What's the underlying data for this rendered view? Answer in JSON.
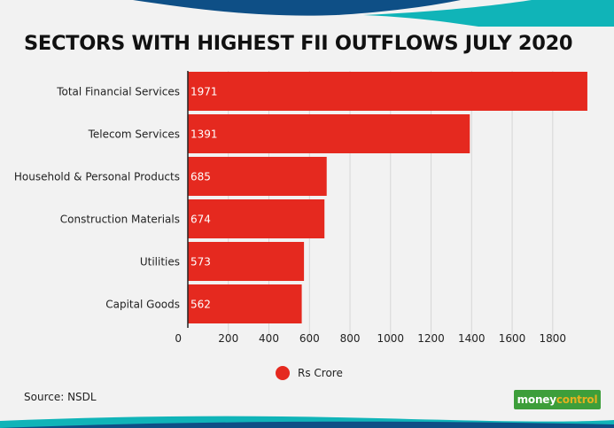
{
  "chart_data": {
    "type": "bar",
    "orientation": "horizontal",
    "title": "SECTORS WITH HIGHEST FII OUTFLOWS JULY 2020",
    "categories": [
      "Total Financial Services",
      "Telecom Services",
      "Household & Personal Products",
      "Construction Materials",
      "Utilities",
      "Capital Goods"
    ],
    "series": [
      {
        "name": "Rs Crore",
        "values": [
          1971,
          1391,
          685,
          674,
          573,
          562
        ]
      }
    ],
    "xlim": [
      0,
      1980
    ],
    "xticks": [
      0,
      200,
      400,
      600,
      800,
      1000,
      1200,
      1400,
      1600,
      1800
    ],
    "xlabel": "",
    "ylabel": "",
    "grid": true,
    "legend_position": "bottom-center"
  },
  "colors": {
    "bar": "#e5291f",
    "background": "#f2f2f2",
    "band_dark": "#0e4f86",
    "band_teal": "#10b4b8",
    "brand_green": "#3d9e3a",
    "brand_gold": "#e3b21f"
  },
  "legend": {
    "label": "Rs Crore"
  },
  "source": "Source:  NSDL",
  "brand": {
    "part1": "money",
    "part2": "control"
  }
}
